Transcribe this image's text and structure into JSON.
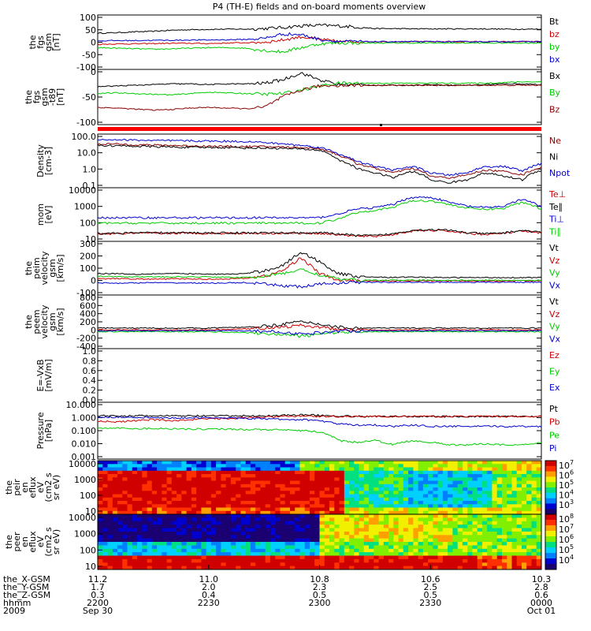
{
  "chart_data": {
    "type": "line",
    "title": "P4 (TH-E) fields and on-board moments overview",
    "panels": [
      {
        "ylabel": [
          "the",
          "fgs",
          "gsm",
          "[nT]"
        ],
        "yticks": [
          "100",
          "50",
          "0",
          "-50",
          "-100"
        ],
        "ylim": [
          -100,
          100
        ],
        "log": false,
        "series": [
          {
            "name": "Bt",
            "color": "#000000",
            "values": [
              33,
              35,
              38,
              40,
              44,
              46,
              47,
              48,
              48,
              50,
              54,
              60,
              62,
              60,
              56,
              50,
              50,
              49,
              49,
              49,
              49,
              49,
              48,
              48,
              48
            ]
          },
          {
            "name": "bz",
            "color": "#cc0000",
            "values": [
              -8,
              -6,
              -6,
              -5,
              -4,
              -4,
              -5,
              -3,
              -2,
              0,
              8,
              20,
              10,
              2,
              2,
              2,
              2,
              2,
              2,
              2,
              2,
              2,
              2,
              2,
              2
            ]
          },
          {
            "name": "by",
            "color": "#00cc00",
            "values": [
              -20,
              -22,
              -24,
              -26,
              -24,
              -22,
              -20,
              -20,
              -22,
              -30,
              -36,
              -20,
              -6,
              -3,
              -3,
              -3,
              -3,
              -3,
              -3,
              -3,
              -3,
              -3,
              -3,
              -3,
              -3
            ]
          },
          {
            "name": "bx",
            "color": "#0000cc",
            "values": [
              5,
              6,
              6,
              7,
              7,
              8,
              8,
              9,
              10,
              14,
              30,
              28,
              10,
              3,
              2,
              2,
              2,
              2,
              2,
              2,
              2,
              2,
              2,
              2,
              2
            ]
          }
        ]
      },
      {
        "ylabel": [
          "the",
          "fgs",
          "gsm",
          "-t89",
          "[nT]"
        ],
        "yticks": [
          "0",
          "-50",
          "-100"
        ],
        "ylim": [
          -120,
          40
        ],
        "log": false,
        "series": [
          {
            "name": "Bx",
            "color": "#000000",
            "values": [
              -10,
              -8,
              -6,
              -4,
              -2,
              -2,
              -4,
              -2,
              -2,
              0,
              10,
              30,
              10,
              -4,
              -4,
              -6,
              -6,
              -6,
              -4,
              -6,
              -6,
              -4,
              -2,
              -2,
              -4
            ]
          },
          {
            "name": "By",
            "color": "#00cc00",
            "values": [
              -30,
              -28,
              -30,
              -32,
              -34,
              -30,
              -26,
              -28,
              -30,
              -32,
              -30,
              -20,
              -8,
              0,
              0,
              0,
              0,
              0,
              0,
              0,
              0,
              0,
              2,
              4,
              4
            ]
          },
          {
            "name": "Bz",
            "color": "#880000",
            "values": [
              -70,
              -72,
              -75,
              -78,
              -76,
              -72,
              -70,
              -72,
              -74,
              -70,
              -40,
              -20,
              -8,
              -6,
              -6,
              -6,
              -6,
              -6,
              -6,
              -6,
              -6,
              -6,
              -6,
              -6,
              -6
            ]
          }
        ]
      },
      {
        "ylabel": [
          "Density",
          "[cm-3]"
        ],
        "yticks": [
          "100.0",
          "10.0",
          "1.0",
          "0.1"
        ],
        "ylim": [
          0.1,
          200
        ],
        "log": true,
        "series": [
          {
            "name": "Ne",
            "color": "#880000",
            "values": [
              50,
              48,
              45,
              42,
              40,
              38,
              36,
              35,
              34,
              34,
              32,
              30,
              25,
              10,
              3,
              1.5,
              0.8,
              1.5,
              0.5,
              0.4,
              0.6,
              1.2,
              1.0,
              0.6,
              1.8
            ]
          },
          {
            "name": "Ni",
            "color": "#000000",
            "values": [
              40,
              38,
              36,
              34,
              32,
              30,
              30,
              30,
              28,
              28,
              26,
              24,
              20,
              5,
              1.5,
              0.8,
              0.4,
              1.0,
              0.3,
              0.2,
              0.3,
              0.8,
              0.5,
              0.3,
              1.2
            ]
          },
          {
            "name": "Npot",
            "color": "#0000cc",
            "values": [
              90,
              90,
              85,
              80,
              78,
              76,
              74,
              72,
              70,
              60,
              50,
              40,
              30,
              12,
              4,
              2,
              1.2,
              2,
              0.8,
              0.6,
              0.8,
              2,
              2,
              1,
              3
            ]
          }
        ]
      },
      {
        "ylabel": [
          "mom",
          "[eV]"
        ],
        "yticks": [
          "10000",
          "1000",
          "100",
          "10"
        ],
        "ylim": [
          10,
          15000
        ],
        "log": true,
        "series": [
          {
            "name": "Te⊥",
            "color": "#cc0000",
            "values": [
              28,
              28,
              30,
              30,
              30,
              30,
              30,
              30,
              30,
              30,
              30,
              30,
              30,
              25,
              20,
              20,
              25,
              40,
              45,
              40,
              30,
              25,
              30,
              40,
              30
            ]
          },
          {
            "name": "Te∥",
            "color": "#000000",
            "values": [
              30,
              30,
              32,
              32,
              32,
              32,
              32,
              32,
              32,
              32,
              32,
              32,
              32,
              28,
              22,
              22,
              28,
              45,
              50,
              45,
              32,
              28,
              32,
              45,
              32
            ]
          },
          {
            "name": "Ti⊥",
            "color": "#0000cc",
            "values": [
              250,
              250,
              250,
              250,
              250,
              250,
              250,
              250,
              250,
              250,
              250,
              250,
              250,
              400,
              800,
              1000,
              1500,
              4000,
              4000,
              2000,
              1200,
              1000,
              1200,
              3000,
              1000
            ]
          },
          {
            "name": "Ti∥",
            "color": "#00cc00",
            "values": [
              120,
              120,
              120,
              120,
              120,
              120,
              120,
              120,
              120,
              120,
              120,
              120,
              120,
              200,
              500,
              700,
              1000,
              2500,
              2500,
              1500,
              900,
              800,
              900,
              2000,
              800
            ]
          }
        ]
      },
      {
        "ylabel": [
          "the",
          "peim",
          "velocity",
          "gsm",
          "[km/s]"
        ],
        "yticks": [
          "300",
          "200",
          "100",
          "0",
          "-100"
        ],
        "ylim": [
          -100,
          300
        ],
        "log": false,
        "series": [
          {
            "name": "Vt",
            "color": "#000000",
            "values": [
              60,
              60,
              55,
              58,
              60,
              58,
              55,
              55,
              60,
              80,
              120,
              220,
              150,
              60,
              40,
              35,
              30,
              35,
              30,
              30,
              30,
              30,
              30,
              30,
              30
            ]
          },
          {
            "name": "Vz",
            "color": "#cc0000",
            "values": [
              20,
              22,
              20,
              18,
              20,
              20,
              18,
              20,
              25,
              40,
              80,
              180,
              60,
              10,
              5,
              5,
              5,
              5,
              5,
              5,
              5,
              5,
              5,
              5,
              5
            ]
          },
          {
            "name": "Vy",
            "color": "#00cc00",
            "values": [
              40,
              38,
              36,
              35,
              34,
              36,
              35,
              32,
              30,
              40,
              60,
              90,
              50,
              20,
              10,
              10,
              10,
              10,
              10,
              10,
              10,
              10,
              10,
              10,
              10
            ]
          },
          {
            "name": "Vx",
            "color": "#0000cc",
            "values": [
              -10,
              -12,
              -10,
              -8,
              -10,
              -10,
              -12,
              -10,
              -8,
              -20,
              -30,
              -40,
              -20,
              -10,
              -5,
              -5,
              -5,
              -5,
              -5,
              -5,
              -5,
              -5,
              -5,
              -5,
              -5
            ]
          }
        ]
      },
      {
        "ylabel": [
          "the",
          "peem",
          "velocity",
          "gsm",
          "[km/s]"
        ],
        "yticks": [
          "800",
          "600",
          "400",
          "200",
          "0",
          "-200",
          "-400"
        ],
        "ylim": [
          -400,
          800
        ],
        "log": false,
        "series": [
          {
            "name": "Vt",
            "color": "#000000",
            "values": [
              60,
              60,
              60,
              60,
              60,
              60,
              60,
              70,
              80,
              100,
              150,
              200,
              150,
              80,
              60,
              60,
              60,
              60,
              60,
              60,
              60,
              60,
              60,
              60,
              60
            ]
          },
          {
            "name": "Vz",
            "color": "#cc0000",
            "values": [
              20,
              20,
              20,
              20,
              20,
              20,
              20,
              30,
              40,
              60,
              80,
              120,
              80,
              30,
              20,
              20,
              20,
              20,
              20,
              20,
              20,
              20,
              20,
              20,
              20
            ]
          },
          {
            "name": "Vy",
            "color": "#00cc00",
            "values": [
              -20,
              -20,
              -20,
              -20,
              -20,
              -20,
              -20,
              -30,
              -40,
              -60,
              -80,
              -120,
              -80,
              -30,
              -20,
              -20,
              -20,
              -20,
              -20,
              -20,
              -20,
              -20,
              -20,
              -20,
              -20
            ]
          },
          {
            "name": "Vx",
            "color": "#0000cc",
            "values": [
              0,
              0,
              0,
              0,
              0,
              0,
              0,
              0,
              0,
              -10,
              -30,
              -80,
              -40,
              -10,
              0,
              0,
              0,
              0,
              0,
              0,
              0,
              0,
              0,
              0,
              0
            ]
          }
        ]
      },
      {
        "ylabel": [
          "E=-VxB",
          "[mV/m]"
        ],
        "yticks": [
          "1.0",
          "0.8",
          "0.6",
          "0.4",
          "0.2",
          "0.0"
        ],
        "ylim": [
          0,
          1
        ],
        "log": false,
        "series": [
          {
            "name": "Ez",
            "color": "#cc0000",
            "values": []
          },
          {
            "name": "Ey",
            "color": "#00cc00",
            "values": []
          },
          {
            "name": "Ex",
            "color": "#0000cc",
            "values": []
          }
        ]
      },
      {
        "ylabel": [
          "Pressure",
          "[nPa]"
        ],
        "yticks": [
          "10.000",
          "1.000",
          "0.100",
          "0.010",
          "0.001"
        ],
        "ylim": [
          0.001,
          10
        ],
        "log": true,
        "series": [
          {
            "name": "Pt",
            "color": "#000000",
            "values": [
              1.1,
              1.1,
              1.1,
              1.1,
              1.1,
              1.1,
              1.1,
              1.1,
              1.1,
              1.1,
              1.2,
              1.3,
              1.2,
              1.1,
              1.0,
              1.0,
              1.0,
              1.0,
              1.0,
              1.0,
              1.0,
              1.0,
              1.0,
              1.0,
              1.0
            ]
          },
          {
            "name": "Pb",
            "color": "#cc0000",
            "values": [
              0.5,
              0.4,
              0.5,
              0.6,
              0.5,
              0.6,
              0.7,
              0.7,
              0.8,
              0.9,
              1.0,
              1.1,
              1.0,
              1.0,
              1.0,
              1.0,
              1.0,
              1.0,
              1.0,
              1.0,
              1.0,
              1.0,
              1.0,
              1.0,
              1.0
            ]
          },
          {
            "name": "Pe",
            "color": "#00cc00",
            "values": [
              0.15,
              0.15,
              0.14,
              0.14,
              0.14,
              0.13,
              0.13,
              0.13,
              0.12,
              0.12,
              0.11,
              0.1,
              0.08,
              0.02,
              0.015,
              0.02,
              0.01,
              0.02,
              0.015,
              0.01,
              0.01,
              0.012,
              0.01,
              0.01,
              0.015
            ]
          },
          {
            "name": "Pi",
            "color": "#0000cc",
            "values": [
              0.9,
              0.9,
              0.9,
              0.8,
              0.8,
              0.8,
              0.8,
              0.8,
              0.7,
              0.7,
              0.6,
              0.6,
              0.5,
              0.3,
              0.25,
              0.25,
              0.2,
              0.25,
              0.2,
              0.2,
              0.2,
              0.2,
              0.2,
              0.2,
              0.2
            ]
          }
        ]
      }
    ],
    "spectrograms": [
      {
        "ylabel": [
          "the",
          "peir",
          "en",
          "eflux",
          "eV",
          "(cm2 s",
          "sr eV)"
        ],
        "yticks": [
          "10000",
          "1000",
          "100",
          "10"
        ],
        "colorbar": [
          "7",
          "6",
          "5",
          "4",
          "3"
        ]
      },
      {
        "ylabel": [
          "the",
          "peer",
          "en",
          "eflux",
          "eV",
          "(cm2 s",
          "sr eV)"
        ],
        "yticks": [
          "10000",
          "1000",
          "100",
          "10"
        ],
        "colorbar": [
          "8",
          "7",
          "6",
          "5",
          "4"
        ]
      }
    ],
    "xaxis": {
      "rows": [
        {
          "label": "the_X-GSM",
          "values": [
            "11.2",
            "11.0",
            "10.8",
            "10.6",
            "10.3"
          ]
        },
        {
          "label": "the_Y-GSM",
          "values": [
            "1.7",
            "2.0",
            "2.3",
            "2.5",
            "2.8"
          ]
        },
        {
          "label": "the_Z-GSM",
          "values": [
            "0.3",
            "0.4",
            "0.5",
            "0.5",
            "0.6"
          ]
        },
        {
          "label": "hhmm",
          "values": [
            "2200",
            "2230",
            "2300",
            "2330",
            "0000"
          ]
        },
        {
          "label": "2009",
          "values": [
            "Sep 30",
            "",
            "",
            "",
            "Oct 01"
          ]
        }
      ]
    }
  }
}
